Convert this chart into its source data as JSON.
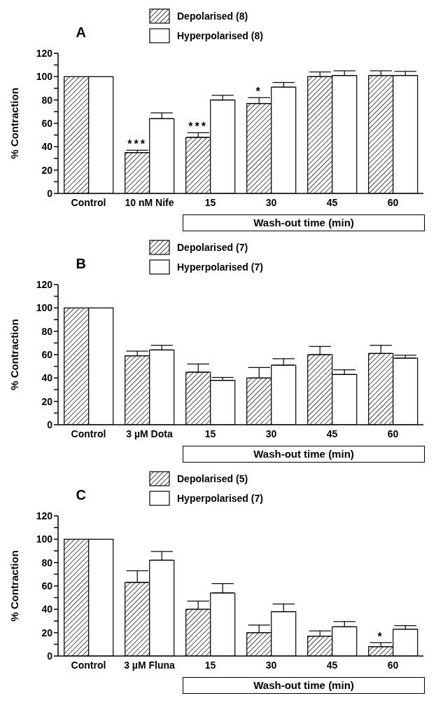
{
  "chart_data": [
    {
      "type": "bar",
      "title": "A",
      "ylabel": "% Contraction",
      "xlabel": "Wash-out time (min)",
      "categories": [
        "Control",
        "10 nM Nife",
        "15",
        "30",
        "45",
        "60"
      ],
      "legend": "top",
      "ylim": [
        0,
        120
      ],
      "yticks": [
        0,
        {
          "value": 10,
          "label": null
        },
        20,
        {
          "value": 30,
          "label": null
        },
        40,
        {
          "value": 50,
          "label": null
        },
        60,
        {
          "value": 70,
          "label": null
        },
        80,
        {
          "value": 90,
          "label": null
        },
        100,
        {
          "value": 110,
          "label": null
        },
        120
      ],
      "series": [
        {
          "name": "Depolarised (8)",
          "color": "#000000",
          "values": [
            100,
            35,
            48,
            77,
            100,
            101
          ],
          "errors": [
            null,
            [
              35,
              37
            ],
            [
              48,
              52
            ],
            [
              77,
              82
            ],
            [
              100,
              104
            ],
            [
              101,
              105
            ]
          ],
          "value_labels": [
            null,
            "***",
            "***",
            "*",
            null,
            null
          ]
        },
        {
          "name": "Hyperpolarised (8)",
          "color": "#ffffff",
          "values": [
            100,
            64,
            80,
            91,
            101,
            101
          ],
          "errors": [
            null,
            [
              64,
              69
            ],
            [
              80,
              84
            ],
            [
              91,
              95
            ],
            [
              101,
              105
            ],
            [
              101,
              104.5
            ]
          ]
        }
      ]
    },
    {
      "type": "bar",
      "title": "B",
      "ylabel": "% Contraction",
      "xlabel": "Wash-out time (min)",
      "categories": [
        "Control",
        "3 µM Dota",
        "15",
        "30",
        "45",
        "60"
      ],
      "legend": "top",
      "ylim": [
        0,
        120
      ],
      "yticks": [
        0,
        {
          "value": 10,
          "label": null
        },
        20,
        {
          "value": 30,
          "label": null
        },
        40,
        {
          "value": 50,
          "label": null
        },
        60,
        {
          "value": 70,
          "label": null
        },
        80,
        {
          "value": 90,
          "label": null
        },
        100,
        {
          "value": 110,
          "label": null
        },
        120
      ],
      "series": [
        {
          "name": "Depolarised (7)",
          "color": "#000000",
          "values": [
            100,
            59,
            45,
            40,
            60,
            61
          ],
          "errors": [
            null,
            [
              59,
              63
            ],
            [
              45,
              52
            ],
            [
              40,
              49
            ],
            [
              60,
              67
            ],
            [
              61,
              68
            ]
          ]
        },
        {
          "name": "Hyperpolarised (7)",
          "color": "#ffffff",
          "values": [
            100,
            64,
            38,
            51,
            43,
            57
          ],
          "errors": [
            null,
            [
              64,
              68
            ],
            [
              38,
              40.5
            ],
            [
              51,
              56.5
            ],
            [
              43,
              47
            ],
            [
              57,
              59.5
            ]
          ]
        }
      ]
    },
    {
      "type": "bar",
      "title": "C",
      "ylabel": "% Contraction",
      "xlabel": "Wash-out time (min)",
      "categories": [
        "Control",
        "3 µM Fluna",
        "15",
        "30",
        "45",
        "60"
      ],
      "legend": "top",
      "ylim": [
        0,
        120
      ],
      "yticks": [
        0,
        {
          "value": 10,
          "label": null
        },
        20,
        {
          "value": 30,
          "label": null
        },
        40,
        {
          "value": 50,
          "label": null
        },
        60,
        {
          "value": 70,
          "label": null
        },
        80,
        {
          "value": 90,
          "label": null
        },
        100,
        {
          "value": 110,
          "label": null
        },
        120
      ],
      "series": [
        {
          "name": "Depolarised (5)",
          "color": "#000000",
          "values": [
            100,
            63,
            40,
            20,
            17,
            8
          ],
          "errors": [
            null,
            [
              63,
              73
            ],
            [
              40,
              47
            ],
            [
              20,
              26.5
            ],
            [
              17,
              21.5
            ],
            [
              8,
              11.5
            ]
          ],
          "value_labels": [
            null,
            null,
            null,
            null,
            null,
            "*"
          ]
        },
        {
          "name": "Hyperpolarised (7)",
          "color": "#ffffff",
          "values": [
            100,
            82,
            54,
            38,
            25,
            23
          ],
          "errors": [
            null,
            [
              82,
              89.5
            ],
            [
              54,
              62
            ],
            [
              38,
              44.5
            ],
            [
              25,
              29.5
            ],
            [
              23,
              26
            ]
          ]
        }
      ]
    }
  ]
}
